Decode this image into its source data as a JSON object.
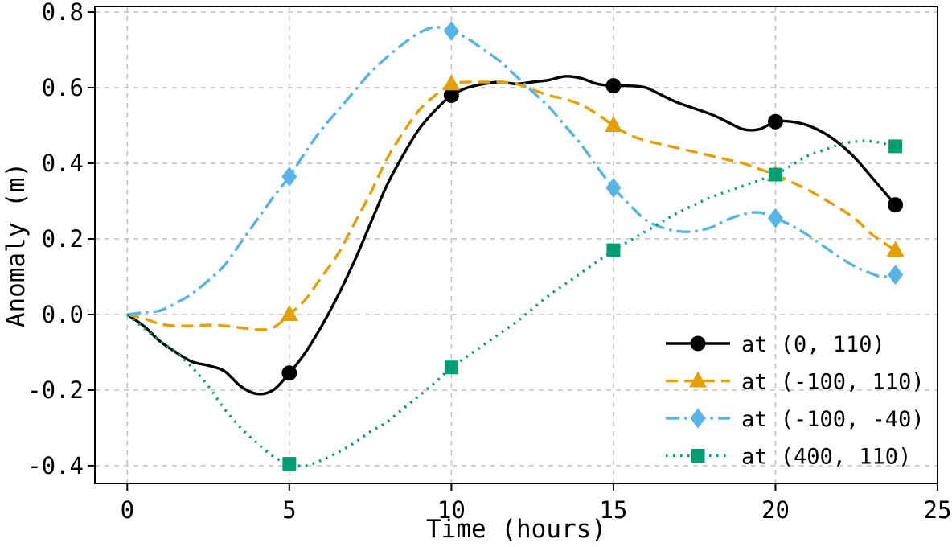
{
  "chart_data": {
    "type": "line",
    "title": "",
    "xlabel": "Time (hours)",
    "ylabel": "Anomaly (m)",
    "xlim": [
      -1.0,
      25.0
    ],
    "ylim": [
      -0.447,
      0.815
    ],
    "xticks": [
      0,
      5,
      10,
      15,
      20,
      25
    ],
    "xtick_labels": [
      "0",
      "5",
      "10",
      "15",
      "20",
      "25"
    ],
    "yticks": [
      -0.4,
      -0.2,
      0.0,
      0.2,
      0.4,
      0.6,
      0.8
    ],
    "ytick_labels": [
      "-0.4",
      "-0.2",
      "0.0",
      "0.2",
      "0.4",
      "0.6",
      "0.8"
    ],
    "grid": true,
    "grid_color": "#bbbbbb",
    "grid_dash": "6 6",
    "frame_color": "#000000",
    "legend_position": "lower right",
    "series": [
      {
        "name": "at (0, 110)",
        "color": "#000000",
        "linestyle": "solid",
        "marker": "circle",
        "points": [
          [
            0,
            0.0
          ],
          [
            0.5,
            -0.03
          ],
          [
            1,
            -0.07
          ],
          [
            1.5,
            -0.1
          ],
          [
            2,
            -0.125
          ],
          [
            2.5,
            -0.135
          ],
          [
            3,
            -0.15
          ],
          [
            3.5,
            -0.19
          ],
          [
            4,
            -0.21
          ],
          [
            4.5,
            -0.2
          ],
          [
            5,
            -0.155
          ],
          [
            5.5,
            -0.1
          ],
          [
            6,
            -0.03
          ],
          [
            6.5,
            0.05
          ],
          [
            7,
            0.14
          ],
          [
            7.5,
            0.24
          ],
          [
            8,
            0.34
          ],
          [
            8.5,
            0.42
          ],
          [
            9,
            0.49
          ],
          [
            9.5,
            0.54
          ],
          [
            10,
            0.58
          ],
          [
            10.5,
            0.6
          ],
          [
            11,
            0.61
          ],
          [
            11.5,
            0.615
          ],
          [
            12,
            0.61
          ],
          [
            12.5,
            0.615
          ],
          [
            13,
            0.62
          ],
          [
            13.5,
            0.63
          ],
          [
            14,
            0.625
          ],
          [
            14.5,
            0.61
          ],
          [
            15,
            0.605
          ],
          [
            15.5,
            0.605
          ],
          [
            16,
            0.6
          ],
          [
            16.5,
            0.58
          ],
          [
            17,
            0.56
          ],
          [
            18,
            0.53
          ],
          [
            18.5,
            0.51
          ],
          [
            19,
            0.49
          ],
          [
            19.5,
            0.49
          ],
          [
            20,
            0.51
          ],
          [
            20.5,
            0.51
          ],
          [
            21,
            0.5
          ],
          [
            21.5,
            0.48
          ],
          [
            22,
            0.45
          ],
          [
            22.5,
            0.41
          ],
          [
            23,
            0.36
          ],
          [
            23.7,
            0.29
          ]
        ],
        "markers": [
          [
            5,
            -0.155
          ],
          [
            10,
            0.58
          ],
          [
            15,
            0.605
          ],
          [
            20,
            0.51
          ],
          [
            23.7,
            0.29
          ]
        ]
      },
      {
        "name": "at (-100, 110)",
        "color": "#E69F00",
        "linestyle": "dashed",
        "marker": "triangle",
        "points": [
          [
            0,
            0.0
          ],
          [
            0.5,
            -0.01
          ],
          [
            1,
            -0.025
          ],
          [
            1.5,
            -0.03
          ],
          [
            2,
            -0.03
          ],
          [
            2.5,
            -0.028
          ],
          [
            3,
            -0.03
          ],
          [
            3.5,
            -0.035
          ],
          [
            4,
            -0.04
          ],
          [
            4.5,
            -0.035
          ],
          [
            5,
            0.0
          ],
          [
            5.5,
            0.04
          ],
          [
            6,
            0.1
          ],
          [
            6.5,
            0.16
          ],
          [
            7,
            0.24
          ],
          [
            7.5,
            0.32
          ],
          [
            8,
            0.41
          ],
          [
            8.5,
            0.48
          ],
          [
            9,
            0.54
          ],
          [
            9.5,
            0.58
          ],
          [
            10,
            0.61
          ],
          [
            10.5,
            0.615
          ],
          [
            11,
            0.615
          ],
          [
            11.5,
            0.615
          ],
          [
            12,
            0.61
          ],
          [
            12.5,
            0.595
          ],
          [
            13,
            0.58
          ],
          [
            13.5,
            0.57
          ],
          [
            14,
            0.555
          ],
          [
            14.5,
            0.53
          ],
          [
            15,
            0.5
          ],
          [
            15.5,
            0.475
          ],
          [
            16,
            0.46
          ],
          [
            16.5,
            0.45
          ],
          [
            17,
            0.44
          ],
          [
            17.5,
            0.43
          ],
          [
            18,
            0.42
          ],
          [
            18.5,
            0.41
          ],
          [
            19,
            0.4
          ],
          [
            19.5,
            0.385
          ],
          [
            20,
            0.37
          ],
          [
            20.5,
            0.35
          ],
          [
            21,
            0.33
          ],
          [
            21.5,
            0.305
          ],
          [
            22,
            0.28
          ],
          [
            22.5,
            0.25
          ],
          [
            23,
            0.21
          ],
          [
            23.7,
            0.17
          ]
        ],
        "markers": [
          [
            5,
            0.0
          ],
          [
            10,
            0.61
          ],
          [
            15,
            0.5
          ],
          [
            20,
            0.37
          ],
          [
            23.7,
            0.17
          ]
        ]
      },
      {
        "name": "at (-100, -40)",
        "color": "#56B4E9",
        "linestyle": "dashdot",
        "marker": "diamond",
        "points": [
          [
            0,
            0.0
          ],
          [
            0.5,
            0.005
          ],
          [
            1,
            0.01
          ],
          [
            1.5,
            0.03
          ],
          [
            2,
            0.055
          ],
          [
            2.5,
            0.09
          ],
          [
            3,
            0.13
          ],
          [
            3.5,
            0.19
          ],
          [
            4,
            0.25
          ],
          [
            4.5,
            0.31
          ],
          [
            5,
            0.365
          ],
          [
            5.5,
            0.43
          ],
          [
            6,
            0.49
          ],
          [
            6.5,
            0.54
          ],
          [
            7,
            0.59
          ],
          [
            7.5,
            0.64
          ],
          [
            8,
            0.68
          ],
          [
            8.5,
            0.715
          ],
          [
            9,
            0.745
          ],
          [
            9.5,
            0.76
          ],
          [
            10,
            0.75
          ],
          [
            10.5,
            0.73
          ],
          [
            11,
            0.7
          ],
          [
            11.5,
            0.67
          ],
          [
            12,
            0.63
          ],
          [
            12.5,
            0.59
          ],
          [
            13,
            0.55
          ],
          [
            13.5,
            0.5
          ],
          [
            14,
            0.45
          ],
          [
            14.5,
            0.39
          ],
          [
            15,
            0.335
          ],
          [
            15.5,
            0.29
          ],
          [
            16,
            0.25
          ],
          [
            16.5,
            0.23
          ],
          [
            17,
            0.22
          ],
          [
            17.5,
            0.22
          ],
          [
            18,
            0.23
          ],
          [
            18.5,
            0.25
          ],
          [
            19,
            0.265
          ],
          [
            19.5,
            0.27
          ],
          [
            20,
            0.255
          ],
          [
            20.5,
            0.235
          ],
          [
            21,
            0.21
          ],
          [
            21.5,
            0.18
          ],
          [
            22,
            0.15
          ],
          [
            22.5,
            0.125
          ],
          [
            23,
            0.107
          ],
          [
            23.3,
            0.1
          ],
          [
            23.7,
            0.105
          ]
        ],
        "markers": [
          [
            5,
            0.365
          ],
          [
            10,
            0.75
          ],
          [
            15,
            0.335
          ],
          [
            20,
            0.255
          ],
          [
            23.7,
            0.105
          ]
        ]
      },
      {
        "name": "at (400, 110)",
        "color": "#009E73",
        "linestyle": "dotted",
        "marker": "square",
        "points": [
          [
            0,
            0.0
          ],
          [
            0.5,
            -0.035
          ],
          [
            1,
            -0.07
          ],
          [
            1.5,
            -0.1
          ],
          [
            2,
            -0.14
          ],
          [
            2.5,
            -0.19
          ],
          [
            3,
            -0.25
          ],
          [
            3.5,
            -0.3
          ],
          [
            4,
            -0.34
          ],
          [
            4.5,
            -0.375
          ],
          [
            5,
            -0.395
          ],
          [
            5.5,
            -0.4
          ],
          [
            6,
            -0.385
          ],
          [
            6.5,
            -0.365
          ],
          [
            7,
            -0.34
          ],
          [
            7.5,
            -0.31
          ],
          [
            8,
            -0.285
          ],
          [
            8.5,
            -0.25
          ],
          [
            9,
            -0.215
          ],
          [
            9.5,
            -0.18
          ],
          [
            10,
            -0.14
          ],
          [
            10.5,
            -0.11
          ],
          [
            11,
            -0.08
          ],
          [
            11.5,
            -0.05
          ],
          [
            12,
            -0.02
          ],
          [
            12.5,
            0.015
          ],
          [
            13,
            0.05
          ],
          [
            13.5,
            0.08
          ],
          [
            14,
            0.11
          ],
          [
            14.5,
            0.14
          ],
          [
            15,
            0.17
          ],
          [
            15.5,
            0.195
          ],
          [
            16,
            0.22
          ],
          [
            16.5,
            0.245
          ],
          [
            17,
            0.27
          ],
          [
            17.5,
            0.29
          ],
          [
            18,
            0.31
          ],
          [
            18.5,
            0.325
          ],
          [
            19,
            0.34
          ],
          [
            19.5,
            0.355
          ],
          [
            20,
            0.37
          ],
          [
            20.5,
            0.395
          ],
          [
            21,
            0.42
          ],
          [
            21.5,
            0.435
          ],
          [
            22,
            0.45
          ],
          [
            22.5,
            0.458
          ],
          [
            23,
            0.458
          ],
          [
            23.7,
            0.445
          ]
        ],
        "markers": [
          [
            5,
            -0.395
          ],
          [
            10,
            -0.14
          ],
          [
            15,
            0.17
          ],
          [
            20,
            0.37
          ],
          [
            23.7,
            0.445
          ]
        ]
      }
    ]
  }
}
